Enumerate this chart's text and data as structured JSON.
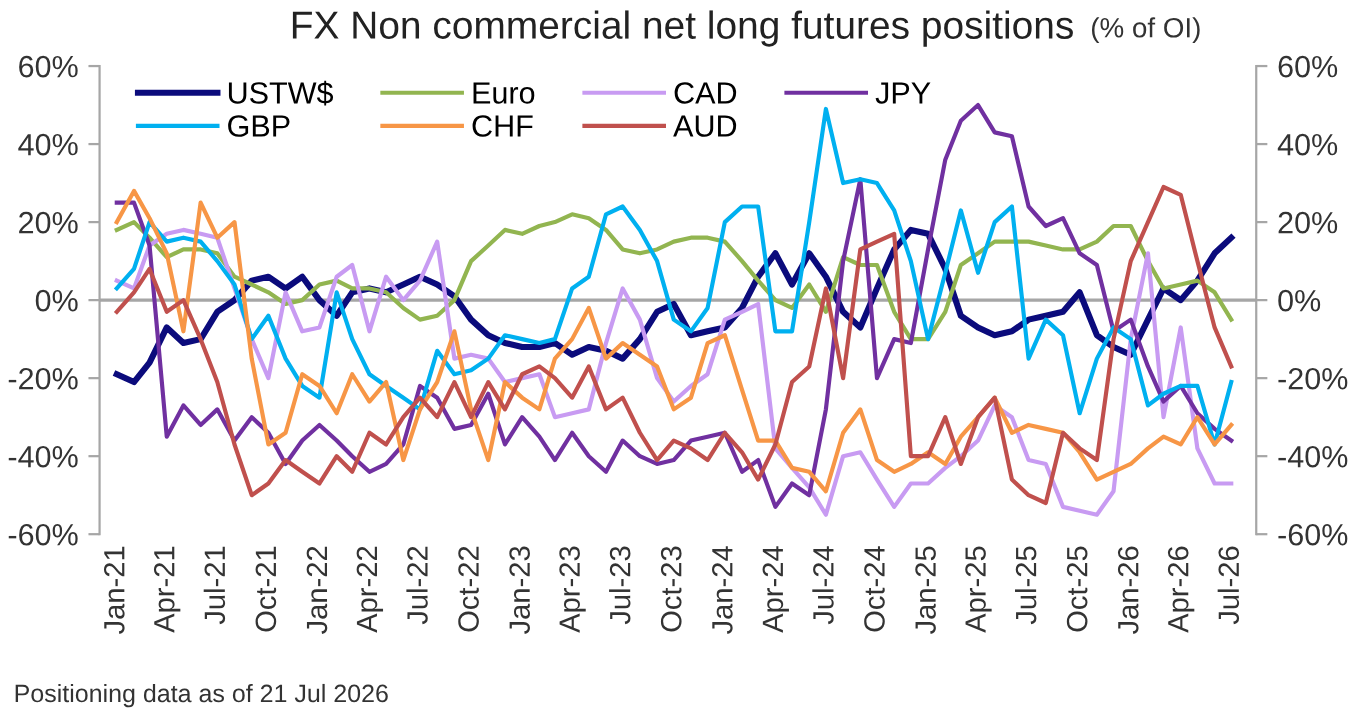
{
  "chart_data": {
    "type": "line",
    "title": "FX Non commercial net long futures positions",
    "subtitle": "(% of OI)",
    "annotations": [
      "Positioning data as of 21 Jul 2026"
    ],
    "x": [
      "2021-01",
      "2021-02",
      "2021-03",
      "2021-04",
      "2021-05",
      "2021-06",
      "2021-07",
      "2021-08",
      "2021-09",
      "2021-10",
      "2021-11",
      "2021-12",
      "2022-01",
      "2022-02",
      "2022-03",
      "2022-04",
      "2022-05",
      "2022-06",
      "2022-07",
      "2022-08",
      "2022-09",
      "2022-10",
      "2022-11",
      "2022-12",
      "2023-01",
      "2023-02",
      "2023-03",
      "2023-04",
      "2023-05",
      "2023-06",
      "2023-07",
      "2023-08",
      "2023-09",
      "2023-10",
      "2023-11",
      "2023-12",
      "2024-01",
      "2024-02",
      "2024-03",
      "2024-04",
      "2024-05",
      "2024-06",
      "2024-07",
      "2024-08",
      "2024-09",
      "2024-10",
      "2024-11",
      "2024-12",
      "2025-01",
      "2025-02",
      "2025-03",
      "2025-04",
      "2025-05",
      "2025-06",
      "2025-07",
      "2025-08",
      "2025-09",
      "2025-10",
      "2025-11",
      "2025-12",
      "2026-01",
      "2026-02",
      "2026-03",
      "2026-04",
      "2026-05",
      "2026-06",
      "2026-07"
    ],
    "series": [
      {
        "name": "USTW$",
        "color": "#0b0b7c",
        "values": [
          -19,
          -21,
          -16,
          -7,
          -11,
          -10,
          -3,
          0,
          5,
          6,
          3,
          6,
          0,
          -4,
          2,
          3,
          2,
          4,
          6,
          4,
          1,
          -5,
          -9,
          -11,
          -12,
          -12,
          -11,
          -14,
          -12,
          -13,
          -15,
          -10,
          -3,
          -1,
          -9,
          -8,
          -7,
          -2,
          6,
          12,
          4,
          12,
          6,
          -3,
          -7,
          3,
          13,
          18,
          17,
          8,
          -4,
          -7,
          -9,
          -8,
          -5,
          -4,
          -3,
          2,
          -9,
          -12,
          -14,
          -5,
          3,
          0,
          5,
          12,
          16
        ]
      },
      {
        "name": "Euro",
        "color": "#92b550",
        "values": [
          18,
          20,
          16,
          11,
          13,
          13,
          12,
          6,
          4,
          2,
          -1,
          0,
          4,
          5,
          3,
          3,
          2,
          -2,
          -5,
          -4,
          0,
          10,
          14,
          18,
          17,
          19,
          20,
          22,
          21,
          18,
          13,
          12,
          13,
          15,
          16,
          16,
          15,
          10,
          5,
          0,
          -2,
          4,
          -3,
          11,
          9,
          9,
          -3,
          -10,
          -10,
          -3,
          9,
          12,
          15,
          15,
          15,
          14,
          13,
          13,
          15,
          19,
          19,
          10,
          3,
          4,
          5,
          2,
          -5
        ]
      },
      {
        "name": "CAD",
        "color": "#c89bf2",
        "values": [
          5,
          3,
          14,
          17,
          18,
          17,
          16,
          3,
          -10,
          -20,
          2,
          -8,
          -7,
          6,
          9,
          -8,
          6,
          0,
          5,
          15,
          -15,
          -14,
          -15,
          -21,
          -20,
          -19,
          -30,
          -29,
          -28,
          -11,
          3,
          -5,
          -20,
          -26,
          -22,
          -19,
          -5,
          -3,
          -1,
          -38,
          -43,
          -48,
          -55,
          -40,
          -39,
          -46,
          -53,
          -47,
          -47,
          -43,
          -40,
          -36,
          -27,
          -30,
          -41,
          -42,
          -53,
          -54,
          -55,
          -49,
          -10,
          12,
          -30,
          -7,
          -38,
          -47,
          -47
        ]
      },
      {
        "name": "JPY",
        "color": "#7030a0",
        "values": [
          25,
          25,
          14,
          -35,
          -27,
          -32,
          -28,
          -36,
          -30,
          -34,
          -42,
          -36,
          -32,
          -36,
          -40,
          -44,
          -42,
          -37,
          -22,
          -25,
          -33,
          -32,
          -24,
          -37,
          -30,
          -35,
          -41,
          -34,
          -40,
          -44,
          -36,
          -40,
          -42,
          -41,
          -36,
          -35,
          -34,
          -44,
          -41,
          -53,
          -47,
          -50,
          -28,
          10,
          31,
          -20,
          -10,
          -11,
          13,
          36,
          46,
          50,
          43,
          42,
          24,
          19,
          21,
          12,
          9,
          -8,
          -5,
          -17,
          -26,
          -22,
          -29,
          -33,
          -36
        ]
      },
      {
        "name": "GBP",
        "color": "#00b0f0",
        "values": [
          3,
          8,
          20,
          15,
          16,
          15,
          10,
          4,
          -10,
          -4,
          -15,
          -22,
          -25,
          2,
          -10,
          -19,
          -22,
          -25,
          -28,
          -13,
          -19,
          -18,
          -15,
          -9,
          -10,
          -11,
          -10,
          3,
          6,
          22,
          24,
          18,
          10,
          -5,
          -8,
          -2,
          20,
          24,
          24,
          -8,
          -8,
          20,
          49,
          30,
          31,
          30,
          23,
          10,
          -10,
          7,
          23,
          7,
          20,
          24,
          -15,
          -5,
          -9,
          -29,
          -15,
          -7,
          -10,
          -27,
          -24,
          -22,
          -22,
          -37,
          -21
        ]
      },
      {
        "name": "CHF",
        "color": "#f79646",
        "values": [
          20,
          28,
          21,
          12,
          -8,
          25,
          16,
          20,
          -15,
          -37,
          -34,
          -19,
          -22,
          -29,
          -19,
          -26,
          -21,
          -41,
          -28,
          -21,
          -8,
          -28,
          -41,
          -21,
          -25,
          -28,
          -15,
          -10,
          -2,
          -15,
          -11,
          -14,
          -17,
          -28,
          -25,
          -11,
          -9,
          -23,
          -36,
          -36,
          -43,
          -44,
          -49,
          -34,
          -28,
          -41,
          -44,
          -42,
          -39,
          -42,
          -35,
          -30,
          -25,
          -34,
          -32,
          -33,
          -34,
          -39,
          -46,
          -44,
          -42,
          -38,
          -35,
          -37,
          -30,
          -37,
          -32
        ]
      },
      {
        "name": "AUD",
        "color": "#c0504d",
        "values": [
          -3,
          2,
          8,
          -3,
          0,
          -10,
          -21,
          -37,
          -50,
          -47,
          -41,
          -44,
          -47,
          -40,
          -44,
          -34,
          -37,
          -30,
          -25,
          -30,
          -21,
          -30,
          -21,
          -28,
          -19,
          -17,
          -20,
          -25,
          -17,
          -28,
          -25,
          -34,
          -41,
          -36,
          -38,
          -41,
          -34,
          -39,
          -46,
          -37,
          -21,
          -17,
          3,
          -20,
          13,
          15,
          17,
          -40,
          -40,
          -30,
          -42,
          -30,
          -25,
          -46,
          -50,
          -52,
          -34,
          -38,
          -41,
          -10,
          10,
          20,
          29,
          27,
          10,
          -7,
          -17
        ]
      }
    ],
    "xlim": [
      "2020-12-01",
      "2026-08-15"
    ],
    "xticks": [
      {
        "value": "2021-01",
        "label": "Jan-21"
      },
      {
        "value": "2021-04",
        "label": "Apr-21"
      },
      {
        "value": "2021-07",
        "label": "Jul-21"
      },
      {
        "value": "2021-10",
        "label": "Oct-21"
      },
      {
        "value": "2022-01",
        "label": "Jan-22"
      },
      {
        "value": "2022-04",
        "label": "Apr-22"
      },
      {
        "value": "2022-07",
        "label": "Jul-22"
      },
      {
        "value": "2022-10",
        "label": "Oct-22"
      },
      {
        "value": "2023-01",
        "label": "Jan-23"
      },
      {
        "value": "2023-04",
        "label": "Apr-23"
      },
      {
        "value": "2023-07",
        "label": "Jul-23"
      },
      {
        "value": "2023-10",
        "label": "Oct-23"
      },
      {
        "value": "2024-01",
        "label": "Jan-24"
      },
      {
        "value": "2024-04",
        "label": "Apr-24"
      },
      {
        "value": "2024-07",
        "label": "Jul-24"
      },
      {
        "value": "2024-10",
        "label": "Oct-24"
      },
      {
        "value": "2025-01",
        "label": "Jan-25"
      },
      {
        "value": "2025-04",
        "label": "Apr-25"
      },
      {
        "value": "2025-07",
        "label": "Jul-25"
      },
      {
        "value": "2025-10",
        "label": "Oct-25"
      },
      {
        "value": "2026-01",
        "label": "Jan-26"
      },
      {
        "value": "2026-04",
        "label": "Apr-26"
      },
      {
        "value": "2026-07",
        "label": "Jul-26"
      }
    ],
    "ylim": [
      -60,
      60
    ],
    "yticks": [
      {
        "value": -60,
        "label": "-60%"
      },
      {
        "value": -40,
        "label": "-40%"
      },
      {
        "value": -20,
        "label": "-20%"
      },
      {
        "value": 0,
        "label": "0%"
      },
      {
        "value": 20,
        "label": "20%"
      },
      {
        "value": 40,
        "label": "40%"
      },
      {
        "value": 60,
        "label": "60%"
      }
    ],
    "y2lim": [
      -60,
      60
    ],
    "y2ticks": [
      {
        "value": -60,
        "label": "-60%"
      },
      {
        "value": -40,
        "label": "-40%"
      },
      {
        "value": -20,
        "label": "-20%"
      },
      {
        "value": 0,
        "label": "0%"
      },
      {
        "value": 20,
        "label": "20%"
      },
      {
        "value": 40,
        "label": "40%"
      },
      {
        "value": 60,
        "label": "60%"
      }
    ],
    "ref_lines": [
      {
        "axis": "y",
        "value": 0,
        "color": "#a6a6a6"
      }
    ],
    "legend": "top left",
    "grid": false,
    "marker": "none",
    "line_style": "solid"
  }
}
